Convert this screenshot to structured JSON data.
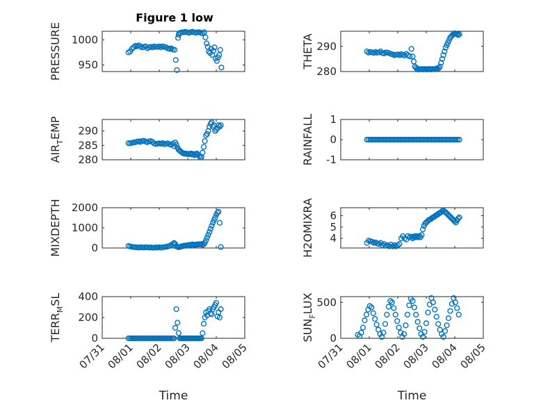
{
  "figure_title": "Figure 1 low",
  "chart_data": [
    {
      "type": "scatter",
      "ylabel": "PRESSURE",
      "ylim": [
        937,
        1017
      ],
      "yticks": [
        "950",
        "1000"
      ],
      "ytick_values": [
        950,
        1000
      ],
      "xlabel": "",
      "x": [
        0.92,
        0.98,
        1.04,
        1.1,
        1.16,
        1.22,
        1.28,
        1.34,
        1.4,
        1.46,
        1.52,
        1.58,
        1.64,
        1.7,
        1.76,
        1.82,
        1.88,
        1.94,
        2.0,
        2.06,
        2.12,
        2.18,
        2.24,
        2.3,
        2.36,
        2.42,
        2.48,
        2.54,
        2.58,
        2.62,
        2.66,
        2.68,
        2.7,
        2.74,
        2.8,
        2.86,
        2.92,
        2.98,
        3.04,
        3.1,
        3.16,
        3.22,
        3.28,
        3.34,
        3.4,
        3.46,
        3.52,
        3.58,
        3.62,
        3.66,
        3.7,
        3.74,
        3.78,
        3.82,
        3.86,
        3.9,
        3.94,
        3.98,
        4.02,
        4.06,
        4.1,
        4.14,
        4.18
      ],
      "y": [
        975,
        977,
        982,
        985,
        988,
        987,
        989,
        987,
        985,
        986,
        987,
        983,
        985,
        986,
        985,
        987,
        986,
        986,
        987,
        985,
        987,
        986,
        985,
        983,
        982,
        983,
        981,
        980,
        960,
        940,
        1004,
        1010,
        1013,
        1014,
        1015,
        1015,
        1016,
        1015,
        1014,
        1015,
        1016,
        1015,
        1014,
        1015,
        1015,
        1014,
        1013,
        1015,
        1005,
        993,
        986,
        977,
        974,
        982,
        970,
        978,
        985,
        963,
        958,
        965,
        970,
        980,
        945
      ]
    },
    {
      "type": "scatter",
      "ylabel": "THETA",
      "ylim": [
        280,
        296
      ],
      "yticks": [
        "280",
        "290"
      ],
      "ytick_values": [
        280,
        290
      ],
      "xlabel": "",
      "x": [
        0.92,
        0.98,
        1.04,
        1.1,
        1.16,
        1.22,
        1.28,
        1.34,
        1.4,
        1.46,
        1.52,
        1.58,
        1.64,
        1.7,
        1.76,
        1.82,
        1.88,
        1.94,
        2.0,
        2.06,
        2.12,
        2.18,
        2.24,
        2.3,
        2.36,
        2.42,
        2.48,
        2.52,
        2.56,
        2.6,
        2.64,
        2.68,
        2.72,
        2.76,
        2.8,
        2.84,
        2.88,
        2.92,
        2.96,
        3.0,
        3.04,
        3.08,
        3.12,
        3.16,
        3.2,
        3.24,
        3.28,
        3.32,
        3.36,
        3.4,
        3.44,
        3.48,
        3.52,
        3.56,
        3.6,
        3.64,
        3.68,
        3.72,
        3.76,
        3.8,
        3.84,
        3.88,
        3.92,
        3.96,
        4.0,
        4.04,
        4.08,
        4.12,
        4.16
      ],
      "y": [
        288,
        287.5,
        287.8,
        287.6,
        287.4,
        287.8,
        287.5,
        287.6,
        288,
        287.4,
        287.2,
        287.6,
        287.5,
        287.3,
        287,
        286.8,
        286.5,
        286.7,
        286.8,
        286.5,
        286.9,
        286.6,
        286.4,
        287,
        286.5,
        286,
        289,
        286,
        284,
        282,
        281.5,
        281,
        280.8,
        281,
        280.9,
        281,
        280.8,
        281,
        280.9,
        281,
        280.8,
        281,
        281,
        280.8,
        281,
        281,
        280.9,
        281,
        281.2,
        281,
        281.4,
        282,
        283.5,
        285,
        286.5,
        288,
        289.5,
        290.5,
        291.5,
        292.5,
        293.5,
        294,
        294.5,
        295,
        295.2,
        295,
        294.8,
        294.5,
        294.8
      ]
    },
    {
      "type": "scatter",
      "ylabel": "AIR_TEMP",
      "ylim": [
        280,
        294
      ],
      "yticks": [
        "280",
        "285",
        "290"
      ],
      "ytick_values": [
        280,
        285,
        290
      ],
      "xlabel": "",
      "x": [
        0.92,
        0.98,
        1.04,
        1.1,
        1.16,
        1.22,
        1.28,
        1.34,
        1.4,
        1.46,
        1.52,
        1.58,
        1.64,
        1.7,
        1.76,
        1.82,
        1.88,
        1.94,
        2.0,
        2.06,
        2.12,
        2.18,
        2.24,
        2.3,
        2.36,
        2.42,
        2.48,
        2.52,
        2.56,
        2.6,
        2.64,
        2.68,
        2.72,
        2.76,
        2.8,
        2.84,
        2.88,
        2.92,
        2.96,
        3.0,
        3.04,
        3.08,
        3.12,
        3.16,
        3.2,
        3.24,
        3.28,
        3.32,
        3.36,
        3.4,
        3.44,
        3.48,
        3.52,
        3.56,
        3.6,
        3.64,
        3.68,
        3.72,
        3.76,
        3.8,
        3.84,
        3.88,
        3.92,
        3.96,
        4.0,
        4.04,
        4.08,
        4.12,
        4.16
      ],
      "y": [
        285.8,
        285.7,
        285.9,
        286,
        286.1,
        286.3,
        286.4,
        286.2,
        286.5,
        286.6,
        286.3,
        286.1,
        286.4,
        286.5,
        286.2,
        285.7,
        285.5,
        285.6,
        285.7,
        285.6,
        285.8,
        285.4,
        285.6,
        285.7,
        285.4,
        285.2,
        285.6,
        284.7,
        286,
        285.2,
        284.2,
        283.5,
        283.2,
        282.8,
        282.5,
        282.3,
        282.1,
        282.2,
        282,
        282.1,
        281.9,
        282.1,
        282.2,
        281.8,
        282,
        281.6,
        281.9,
        282.2,
        281.8,
        281.3,
        280.8,
        281,
        282.5,
        284.5,
        286.5,
        288.5,
        289,
        290,
        291.5,
        292.5,
        293,
        291.5,
        292,
        290,
        290.5,
        291,
        292,
        291.5,
        292
      ]
    },
    {
      "type": "scatter",
      "ylabel": "RAINFALL",
      "ylim": [
        -1,
        1
      ],
      "yticks": [
        "-1",
        "0",
        "1"
      ],
      "ytick_values": [
        -1,
        0,
        1
      ],
      "xlabel": "",
      "x": [
        0.92,
        0.98,
        1.04,
        1.1,
        1.16,
        1.22,
        1.28,
        1.34,
        1.4,
        1.46,
        1.52,
        1.58,
        1.64,
        1.7,
        1.76,
        1.82,
        1.88,
        1.94,
        2.0,
        2.06,
        2.12,
        2.18,
        2.24,
        2.3,
        2.36,
        2.42,
        2.48,
        2.54,
        2.6,
        2.66,
        2.72,
        2.78,
        2.84,
        2.9,
        2.96,
        3.02,
        3.08,
        3.14,
        3.2,
        3.26,
        3.32,
        3.38,
        3.44,
        3.5,
        3.56,
        3.62,
        3.68,
        3.74,
        3.8,
        3.86,
        3.92,
        3.98,
        4.04,
        4.1,
        4.16
      ],
      "y": [
        0,
        0,
        0,
        0,
        0,
        0,
        0,
        0,
        0,
        0,
        0,
        0,
        0,
        0,
        0,
        0,
        0,
        0,
        0,
        0,
        0,
        0,
        0,
        0,
        0,
        0,
        0,
        0,
        0,
        0,
        0,
        0,
        0,
        0,
        0,
        0,
        0,
        0,
        0,
        0,
        0,
        0,
        0,
        0,
        0,
        0,
        0,
        0,
        0,
        0,
        0,
        0,
        0,
        0,
        0
      ]
    },
    {
      "type": "scatter",
      "ylabel": "MIXDEPTH",
      "ylim": [
        0,
        2000
      ],
      "yticks": [
        "0",
        "1000",
        "2000"
      ],
      "ytick_values": [
        0,
        1000,
        2000
      ],
      "xlabel": "",
      "x": [
        0.92,
        0.98,
        1.04,
        1.1,
        1.16,
        1.22,
        1.28,
        1.34,
        1.4,
        1.46,
        1.52,
        1.58,
        1.64,
        1.7,
        1.76,
        1.82,
        1.88,
        1.94,
        2.0,
        2.06,
        2.12,
        2.18,
        2.24,
        2.3,
        2.36,
        2.42,
        2.48,
        2.52,
        2.56,
        2.6,
        2.64,
        2.68,
        2.72,
        2.76,
        2.8,
        2.84,
        2.88,
        2.92,
        2.96,
        3.0,
        3.04,
        3.08,
        3.12,
        3.16,
        3.2,
        3.24,
        3.28,
        3.32,
        3.36,
        3.4,
        3.44,
        3.48,
        3.52,
        3.56,
        3.6,
        3.64,
        3.68,
        3.72,
        3.76,
        3.8,
        3.84,
        3.88,
        3.92,
        3.96,
        4.0,
        4.04,
        4.08,
        4.12,
        4.16
      ],
      "y": [
        100,
        80,
        60,
        50,
        40,
        30,
        20,
        40,
        30,
        20,
        40,
        30,
        20,
        30,
        10,
        20,
        30,
        20,
        40,
        20,
        30,
        50,
        60,
        80,
        100,
        150,
        200,
        250,
        200,
        80,
        60,
        40,
        50,
        70,
        90,
        100,
        120,
        110,
        130,
        140,
        150,
        130,
        160,
        180,
        170,
        150,
        160,
        180,
        170,
        190,
        180,
        200,
        150,
        180,
        260,
        380,
        520,
        660,
        800,
        950,
        1100,
        1250,
        1380,
        1500,
        1650,
        1750,
        1800,
        1250,
        50
      ]
    },
    {
      "type": "scatter",
      "ylabel": "H2OMIXRA",
      "ylim": [
        3.15,
        6.7
      ],
      "yticks": [
        "4",
        "5",
        "6"
      ],
      "ytick_values": [
        4,
        5,
        6
      ],
      "xlabel": "",
      "x": [
        0.92,
        0.98,
        1.04,
        1.1,
        1.16,
        1.22,
        1.28,
        1.34,
        1.4,
        1.46,
        1.52,
        1.58,
        1.64,
        1.7,
        1.76,
        1.82,
        1.88,
        1.94,
        2.0,
        2.06,
        2.12,
        2.18,
        2.24,
        2.3,
        2.36,
        2.42,
        2.48,
        2.52,
        2.56,
        2.6,
        2.64,
        2.68,
        2.72,
        2.76,
        2.8,
        2.84,
        2.88,
        2.92,
        2.96,
        3.0,
        3.04,
        3.08,
        3.12,
        3.16,
        3.2,
        3.24,
        3.28,
        3.32,
        3.36,
        3.4,
        3.44,
        3.48,
        3.52,
        3.56,
        3.6,
        3.64,
        3.68,
        3.72,
        3.76,
        3.8,
        3.84,
        3.88,
        3.92,
        3.96,
        4.0,
        4.04,
        4.08,
        4.12,
        4.16
      ],
      "y": [
        3.6,
        3.8,
        3.75,
        3.7,
        3.6,
        3.65,
        3.55,
        3.5,
        3.6,
        3.4,
        3.5,
        3.35,
        3.4,
        3.3,
        3.45,
        3.3,
        3.4,
        3.3,
        3.4,
        3.5,
        4,
        4.2,
        4,
        3.9,
        4.2,
        4.1,
        4.15,
        4,
        4.1,
        4.2,
        4.1,
        4.2,
        4.1,
        4.2,
        4.1,
        4.3,
        4.8,
        5.1,
        5.3,
        5.4,
        5.5,
        5.6,
        5.65,
        5.7,
        5.8,
        5.85,
        5.9,
        6,
        6.05,
        6.1,
        6.2,
        6.25,
        6.3,
        6.4,
        6.45,
        6.35,
        6.3,
        6.2,
        6.1,
        6,
        5.9,
        5.8,
        5.7,
        5.6,
        5.5,
        5.4,
        5.6,
        5.75,
        5.85
      ]
    },
    {
      "type": "scatter",
      "ylabel": "TERR_MSL",
      "ylim": [
        0,
        400
      ],
      "yticks": [
        "0",
        "200",
        "400"
      ],
      "ytick_values": [
        0,
        200,
        400
      ],
      "xlabel": "Time",
      "xticks": [
        "07/31",
        "08/01",
        "08/02",
        "08/03",
        "08/04",
        "08/05"
      ],
      "xtick_values": [
        0,
        1,
        2,
        3,
        4,
        5
      ],
      "x": [
        0.92,
        0.98,
        1.04,
        1.1,
        1.16,
        1.22,
        1.28,
        1.34,
        1.4,
        1.46,
        1.52,
        1.58,
        1.64,
        1.7,
        1.76,
        1.82,
        1.88,
        1.94,
        2.0,
        2.06,
        2.12,
        2.18,
        2.24,
        2.3,
        2.36,
        2.42,
        2.48,
        2.52,
        2.56,
        2.6,
        2.64,
        2.68,
        2.72,
        2.76,
        2.8,
        2.84,
        2.88,
        2.92,
        2.96,
        3.0,
        3.04,
        3.08,
        3.12,
        3.16,
        3.2,
        3.24,
        3.28,
        3.32,
        3.36,
        3.4,
        3.44,
        3.48,
        3.52,
        3.56,
        3.6,
        3.64,
        3.68,
        3.72,
        3.76,
        3.8,
        3.84,
        3.88,
        3.92,
        3.96,
        4.0,
        4.04,
        4.08,
        4.12,
        4.16
      ],
      "y": [
        0,
        0,
        0,
        0,
        0,
        0,
        0,
        0,
        0,
        0,
        0,
        0,
        0,
        0,
        0,
        0,
        0,
        0,
        0,
        0,
        0,
        0,
        0,
        0,
        0,
        0,
        0,
        0,
        100,
        280,
        150,
        50,
        0,
        0,
        0,
        0,
        0,
        0,
        0,
        0,
        0,
        0,
        0,
        0,
        0,
        0,
        0,
        0,
        0,
        0,
        0,
        0,
        50,
        140,
        200,
        250,
        220,
        260,
        280,
        240,
        230,
        280,
        300,
        320,
        340,
        210,
        250,
        200,
        280
      ]
    },
    {
      "type": "scatter",
      "ylabel": "SUN_FLUX",
      "ylim": [
        0,
        580
      ],
      "yticks": [
        "0",
        "500"
      ],
      "ytick_values": [
        0,
        500
      ],
      "xlabel": "Time",
      "xticks": [
        "07/31",
        "08/01",
        "08/02",
        "08/03",
        "08/04",
        "08/05"
      ],
      "xtick_values": [
        0,
        1,
        2,
        3,
        4,
        5
      ],
      "x": [
        0.6,
        0.66,
        0.72,
        0.78,
        0.84,
        0.9,
        0.96,
        1.02,
        1.08,
        1.14,
        1.2,
        1.26,
        1.32,
        1.38,
        1.44,
        1.5,
        1.56,
        1.62,
        1.68,
        1.74,
        1.8,
        1.86,
        1.92,
        1.98,
        2.04,
        2.1,
        2.16,
        2.22,
        2.28,
        2.34,
        2.4,
        2.46,
        2.52,
        2.58,
        2.64,
        2.7,
        2.76,
        2.82,
        2.88,
        2.94,
        3.0,
        3.06,
        3.12,
        3.18,
        3.24,
        3.3,
        3.36,
        3.42,
        3.48,
        3.54,
        3.6,
        3.66,
        3.72,
        3.78,
        3.84,
        3.9,
        3.96,
        4.02,
        4.08,
        4.14
      ],
      "y": [
        50,
        30,
        80,
        150,
        250,
        330,
        400,
        450,
        430,
        350,
        270,
        190,
        120,
        60,
        20,
        80,
        200,
        330,
        440,
        520,
        500,
        420,
        330,
        240,
        150,
        80,
        20,
        60,
        180,
        330,
        460,
        550,
        520,
        430,
        330,
        230,
        140,
        60,
        20,
        90,
        210,
        360,
        470,
        560,
        500,
        400,
        300,
        200,
        120,
        60,
        20,
        100,
        180,
        280,
        380,
        480,
        560,
        500,
        420,
        330
      ]
    }
  ]
}
